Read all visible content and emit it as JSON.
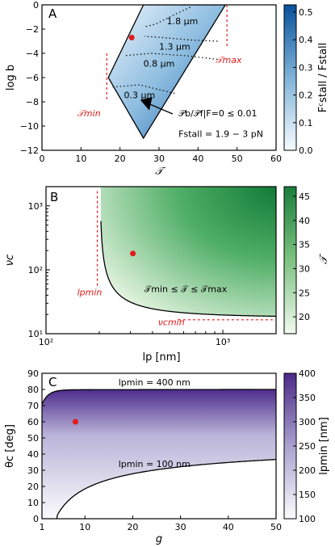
{
  "chart_data": [
    {
      "panel": "A",
      "type": "area",
      "xlabel": "𝒯",
      "ylabel": "log b",
      "xlim": [
        0,
        60
      ],
      "ylim": [
        -12,
        0
      ],
      "xticks": [
        "0",
        "10",
        "20",
        "30",
        "40",
        "50",
        "60"
      ],
      "yticks": [
        "0",
        "−2",
        "−4",
        "−6",
        "−8",
        "−10",
        "−12"
      ],
      "region_corners": [
        [
          26,
          0
        ],
        [
          47,
          0
        ],
        [
          26,
          -11
        ],
        [
          17,
          -6
        ]
      ],
      "contours": [
        {
          "label": "1.8 μm",
          "points": [
            [
              38,
              -0.2
            ],
            [
              34,
              -0.8
            ],
            [
              29,
              -1.6
            ],
            [
              26.5,
              -1.8
            ]
          ]
        },
        {
          "label": "1.3 μm",
          "points": [
            [
              45,
              -3.0
            ],
            [
              38,
              -2.9
            ],
            [
              31,
              -2.7
            ],
            [
              26.3,
              -2.6
            ]
          ]
        },
        {
          "label": "0.8 μm",
          "points": [
            [
              45,
              -4.5
            ],
            [
              37,
              -4.2
            ],
            [
              28,
              -4.0
            ],
            [
              21,
              -4.2
            ]
          ]
        },
        {
          "label": "0.3 μm",
          "points": [
            [
              34,
              -7.3
            ],
            [
              30,
              -7.0
            ],
            [
              25,
              -6.6
            ],
            [
              17.5,
              -6.8
            ]
          ]
        }
      ],
      "marker": {
        "x": 23,
        "y": -2.7
      },
      "T_min": 16.5,
      "T_max": 47,
      "T_min_label": "𝒯min",
      "T_max_label": "𝒯max",
      "annotation_line1": "𝒫b/𝒫f|F=0 ≤ 0.01",
      "annotation_line2": "Fstall = 1.9 − 3 pN",
      "colorbar": {
        "label": "Fᶜstall / Fstall",
        "range": [
          0,
          0.5
        ],
        "ticks": [
          "0.0",
          "0.1",
          "0.2",
          "0.3",
          "0.4",
          "0.5"
        ],
        "colors": [
          "#f7fbff",
          "#08519c"
        ]
      }
    },
    {
      "panel": "B",
      "type": "area",
      "xlabel": "lp [nm]",
      "ylabel": "νc",
      "xscale": "log",
      "yscale": "log",
      "xlim": [
        100,
        2000
      ],
      "ylim": [
        10,
        2000
      ],
      "xticks": [
        "10²",
        "10³"
      ],
      "yticks": [
        "10¹",
        "10²",
        "10³"
      ],
      "boundary_vertical_lp": 212,
      "boundary_horizontal_nu": 16.5,
      "marker": {
        "x": 310,
        "y": 180
      },
      "lp_min_line": 195,
      "nuc_min_line": 16.5,
      "region_label": "𝒯min ≤ 𝒯 ≤ 𝒯max",
      "lp_min_label": "lpmin",
      "nuc_min_label": "νcmin",
      "colorbar": {
        "label": "𝒯",
        "range": [
          16.5,
          47
        ],
        "ticks": [
          "20",
          "25",
          "30",
          "35",
          "40",
          "45"
        ],
        "colors": [
          "#f7fcf5",
          "#238b45"
        ]
      }
    },
    {
      "panel": "C",
      "type": "area",
      "xlabel": "g",
      "ylabel": "θc [deg]",
      "xlim": [
        1,
        50
      ],
      "ylim": [
        0,
        90
      ],
      "xticks": [
        "1",
        "10",
        "20",
        "30",
        "40",
        "50"
      ],
      "yticks": [
        "0",
        "10",
        "20",
        "30",
        "40",
        "50",
        "60",
        "70",
        "80",
        "90"
      ],
      "upper_curve_label": "lpmin = 400 nm",
      "lower_curve_label": "lpmin = 100 nm",
      "marker": {
        "x": 8,
        "y": 60
      },
      "colorbar": {
        "label": "lpmin [nm]",
        "range": [
          100,
          400
        ],
        "ticks": [
          "100",
          "150",
          "200",
          "250",
          "300",
          "350",
          "400"
        ],
        "colors": [
          "#fcfbfd",
          "#54278f"
        ]
      }
    }
  ]
}
